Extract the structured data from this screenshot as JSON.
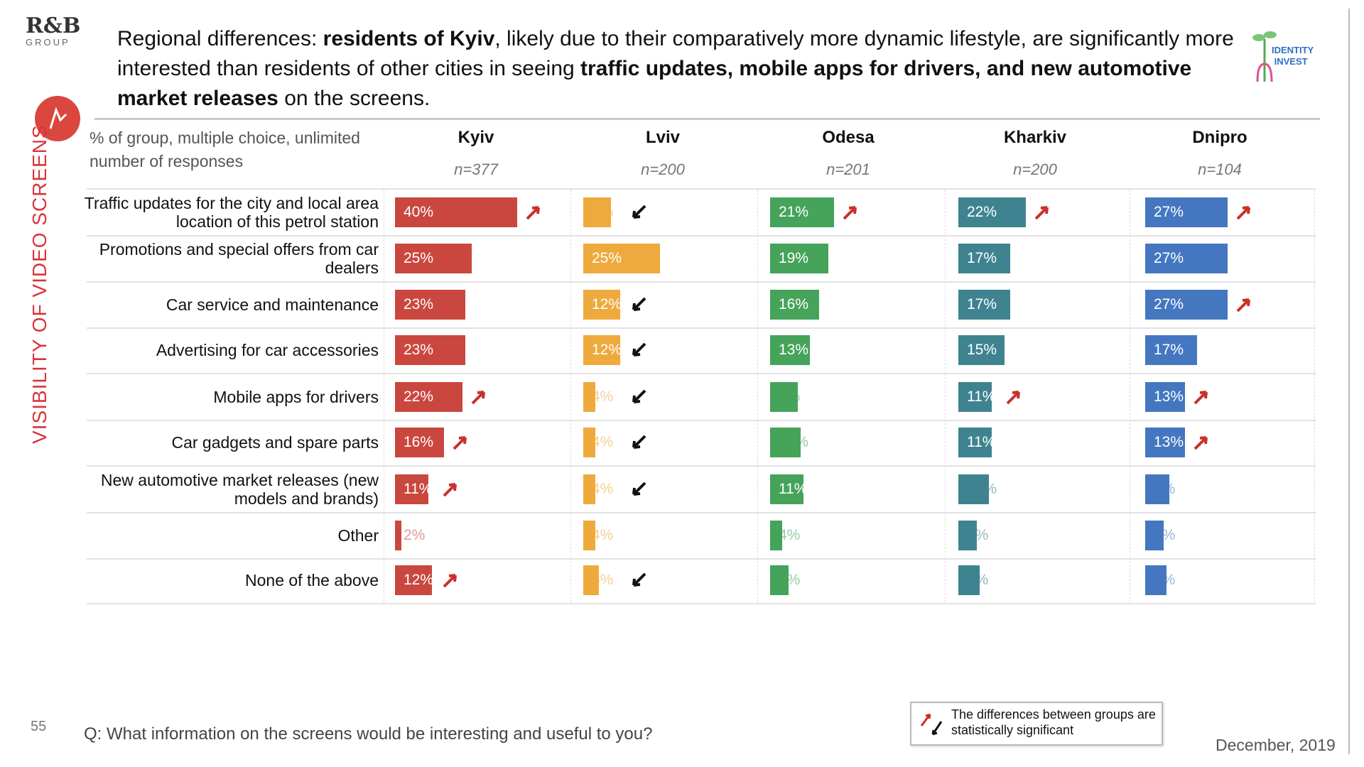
{
  "logos": {
    "rb_group": "R&B GROUP",
    "identity_invest": "IDENTITY INVEST"
  },
  "title": {
    "parts": [
      {
        "text": "Regional differences: ",
        "bold": false
      },
      {
        "text": "residents of Kyiv",
        "bold": true
      },
      {
        "text": ", likely due to their comparatively more dynamic lifestyle, are significantly more interested than residents of other cities in seeing ",
        "bold": false
      },
      {
        "text": "traffic updates, mobile apps for drivers, and new automotive market releases",
        "bold": true
      },
      {
        "text": " on the screens.",
        "bold": false
      }
    ]
  },
  "section_label": "VISIBILITY OF VIDEO SCREENS",
  "subheader": "% of group, multiple choice, unlimited number of responses",
  "page_number": "55",
  "question": "Q: What information on the screens would be interesting and useful to you?",
  "legend": {
    "text": "The differences between groups are statistically significant"
  },
  "date": "December, 2019",
  "colors": {
    "accent": "#d9343a",
    "up_arrow": "#c8302c",
    "down_arrow": "#111111"
  },
  "chart_data": {
    "type": "bar",
    "orientation": "horizontal",
    "unit": "%",
    "categories": [
      "Traffic updates for the city and local area location of this petrol station",
      "Promotions and special offers from car dealers",
      "Car service and maintenance",
      "Advertising for car accessories",
      "Mobile apps for drivers",
      "Car gadgets and spare parts",
      "New automotive market releases (new models and brands)",
      "Other",
      "None of the above"
    ],
    "series": [
      {
        "name": "Kyiv",
        "n": "n=377",
        "color": "#c9473f",
        "values": [
          40,
          25,
          23,
          23,
          22,
          16,
          11,
          2,
          12
        ],
        "significance": [
          "up",
          "",
          "",
          "",
          "up",
          "up",
          "up",
          "",
          "up"
        ]
      },
      {
        "name": "Lviv",
        "n": "n=200",
        "color": "#eeaa3c",
        "values": [
          9,
          25,
          12,
          12,
          4,
          4,
          4,
          4,
          5
        ],
        "significance": [
          "down",
          "",
          "down",
          "down",
          "down",
          "down",
          "down",
          "",
          "down"
        ]
      },
      {
        "name": "Odesa",
        "n": "n=201",
        "color": "#45a35a",
        "values": [
          21,
          19,
          16,
          13,
          9,
          10,
          11,
          4,
          6
        ],
        "significance": [
          "up",
          "",
          "",
          "",
          "",
          "",
          "",
          "",
          ""
        ]
      },
      {
        "name": "Kharkiv",
        "n": "n=200",
        "color": "#3f8390",
        "values": [
          22,
          17,
          17,
          15,
          11,
          11,
          10,
          6,
          7
        ],
        "significance": [
          "up",
          "",
          "",
          "",
          "up",
          "",
          "",
          "",
          ""
        ]
      },
      {
        "name": "Dnipro",
        "n": "n=104",
        "color": "#4577c0",
        "values": [
          27,
          27,
          27,
          17,
          13,
          13,
          8,
          6,
          7
        ],
        "significance": [
          "up",
          "",
          "up",
          "",
          "up",
          "up",
          "",
          "",
          ""
        ]
      }
    ]
  }
}
